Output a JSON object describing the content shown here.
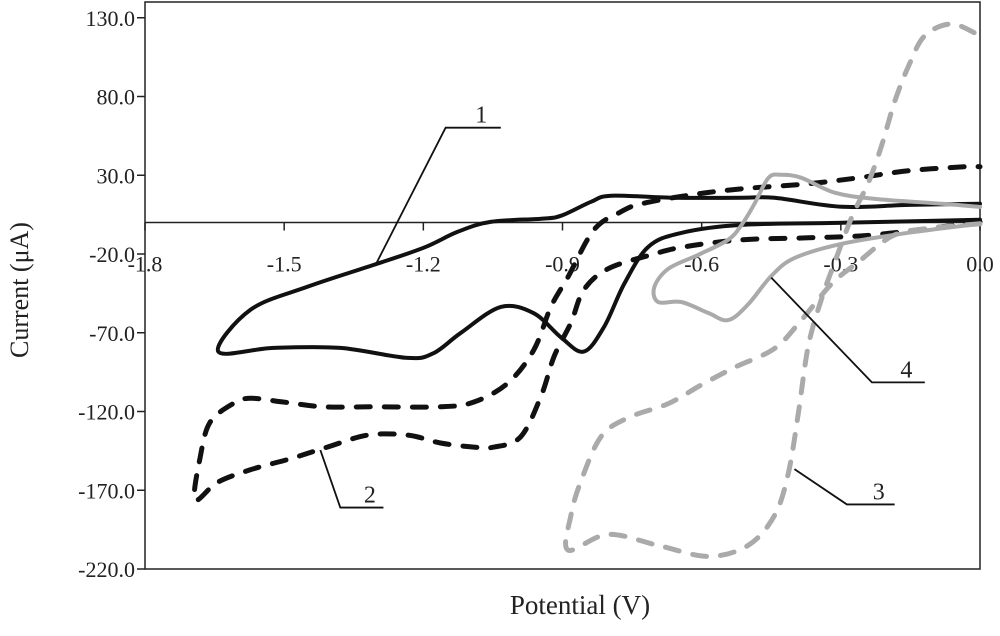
{
  "chart_data": {
    "type": "line",
    "title": "",
    "xlabel": "Potential (V)",
    "ylabel": "Current (μA)",
    "xlim": [
      -1.8,
      0.0
    ],
    "ylim": [
      -220,
      140
    ],
    "xticks": [
      -1.8,
      -1.5,
      -1.2,
      -0.9,
      -0.6,
      -0.3,
      0.0
    ],
    "xtick_labels": [
      "-1.8",
      "-1.5",
      "-1.2",
      "-0.9",
      "-0.6",
      "-0.3",
      "0.0"
    ],
    "yticks": [
      130,
      80,
      30,
      -20,
      -70,
      -120,
      -170,
      -220
    ],
    "ytick_labels": [
      "130.0",
      "80.0",
      "30.0",
      "-20.0",
      "-70.0",
      "-120.0",
      "-170.0",
      "-220.0"
    ],
    "grid": false,
    "series": [
      {
        "id": "1",
        "color": "#111111",
        "style": "solid",
        "points": [
          [
            0.0,
            1.7
          ],
          [
            -0.298,
            -0.2
          ],
          [
            -0.514,
            -1.5
          ],
          [
            -0.644,
            -6.6
          ],
          [
            -0.715,
            -15.5
          ],
          [
            -0.767,
            -39
          ],
          [
            -0.81,
            -66
          ],
          [
            -0.854,
            -82
          ],
          [
            -0.903,
            -73
          ],
          [
            -0.962,
            -57.6
          ],
          [
            -1.033,
            -53.6
          ],
          [
            -1.119,
            -70
          ],
          [
            -1.178,
            -83
          ],
          [
            -1.234,
            -86
          ],
          [
            -1.379,
            -79.6
          ],
          [
            -1.523,
            -79.6
          ],
          [
            -1.642,
            -82
          ],
          [
            -1.573,
            -55.5
          ],
          [
            -1.45,
            -40.8
          ],
          [
            -1.307,
            -26.9
          ],
          [
            -1.199,
            -16
          ],
          [
            -1.126,
            -5.9
          ],
          [
            -1.055,
            0.4
          ],
          [
            -0.946,
            2.4
          ],
          [
            -0.903,
            4.3
          ],
          [
            -0.838,
            13.2
          ],
          [
            -0.795,
            17
          ],
          [
            -0.659,
            15.7
          ],
          [
            -0.514,
            15.7
          ],
          [
            -0.443,
            15.7
          ],
          [
            -0.298,
            10
          ],
          [
            -0.153,
            11.2
          ],
          [
            0.0,
            11.9
          ]
        ]
      },
      {
        "id": "2",
        "color": "#111111",
        "style": "dashed",
        "points": [
          [
            0.0,
            0.4
          ],
          [
            -0.227,
            -7.8
          ],
          [
            -0.37,
            -9.7
          ],
          [
            -0.514,
            -11
          ],
          [
            -0.637,
            -15.4
          ],
          [
            -0.709,
            -20.5
          ],
          [
            -0.802,
            -29.4
          ],
          [
            -0.854,
            -42.8
          ],
          [
            -0.882,
            -63.7
          ],
          [
            -0.918,
            -85
          ],
          [
            -0.946,
            -110
          ],
          [
            -0.99,
            -136
          ],
          [
            -1.048,
            -142.6
          ],
          [
            -1.091,
            -142.6
          ],
          [
            -1.163,
            -140
          ],
          [
            -1.234,
            -135
          ],
          [
            -1.32,
            -135
          ],
          [
            -1.407,
            -142.6
          ],
          [
            -1.487,
            -150
          ],
          [
            -1.573,
            -157
          ],
          [
            -1.644,
            -165
          ],
          [
            -1.692,
            -176
          ],
          [
            -1.681,
            -149
          ],
          [
            -1.66,
            -127
          ],
          [
            -1.61,
            -115
          ],
          [
            -1.573,
            -111.6
          ],
          [
            -1.502,
            -114
          ],
          [
            -1.415,
            -117
          ],
          [
            -1.307,
            -117
          ],
          [
            -1.163,
            -117
          ],
          [
            -1.091,
            -114
          ],
          [
            -1.018,
            -102
          ],
          [
            -0.962,
            -81
          ],
          [
            -0.925,
            -53.6
          ],
          [
            -0.888,
            -34.5
          ],
          [
            -0.832,
            -4.6
          ],
          [
            -0.774,
            6.8
          ],
          [
            -0.73,
            11.9
          ],
          [
            -0.622,
            17.6
          ],
          [
            -0.514,
            21.4
          ],
          [
            -0.37,
            24.6
          ],
          [
            -0.262,
            28.4
          ],
          [
            -0.153,
            32.9
          ],
          [
            -0.032,
            35.4
          ],
          [
            0.0,
            35.4
          ]
        ]
      },
      {
        "id": "3",
        "color": "#aaaaaa",
        "style": "dashed",
        "points": [
          [
            0.0,
            -0.8
          ],
          [
            -0.119,
            -4
          ],
          [
            -0.19,
            -8.7
          ],
          [
            -0.262,
            -25
          ],
          [
            -0.32,
            -39
          ],
          [
            -0.385,
            -62
          ],
          [
            -0.443,
            -80
          ],
          [
            -0.529,
            -92
          ],
          [
            -0.6,
            -103
          ],
          [
            -0.672,
            -115
          ],
          [
            -0.759,
            -124
          ],
          [
            -0.817,
            -136
          ],
          [
            -0.86,
            -164
          ],
          [
            -0.882,
            -186
          ],
          [
            -0.888,
            -208
          ],
          [
            -0.802,
            -198
          ],
          [
            -0.694,
            -205
          ],
          [
            -0.586,
            -212
          ],
          [
            -0.5,
            -205
          ],
          [
            -0.443,
            -186
          ],
          [
            -0.413,
            -159
          ],
          [
            -0.391,
            -120
          ],
          [
            -0.37,
            -78
          ],
          [
            -0.341,
            -48
          ],
          [
            -0.313,
            -25
          ],
          [
            -0.277,
            3
          ],
          [
            -0.24,
            25.8
          ],
          [
            -0.212,
            49
          ],
          [
            -0.184,
            76.7
          ],
          [
            -0.153,
            100
          ],
          [
            -0.119,
            118.6
          ],
          [
            -0.061,
            126
          ],
          [
            0.0,
            118.6
          ]
        ]
      },
      {
        "id": "4",
        "color": "#aaaaaa",
        "style": "solid",
        "points": [
          [
            0.0,
            9.9
          ],
          [
            -0.082,
            11.9
          ],
          [
            -0.227,
            15
          ],
          [
            -0.313,
            18.9
          ],
          [
            -0.385,
            28.4
          ],
          [
            -0.428,
            30.3
          ],
          [
            -0.456,
            28.4
          ],
          [
            -0.486,
            11.9
          ],
          [
            -0.514,
            -1.5
          ],
          [
            -0.543,
            -11
          ],
          [
            -0.607,
            -20.5
          ],
          [
            -0.672,
            -29.4
          ],
          [
            -0.702,
            -41
          ],
          [
            -0.694,
            -50.5
          ],
          [
            -0.644,
            -50.5
          ],
          [
            -0.586,
            -57.4
          ],
          [
            -0.543,
            -62
          ],
          [
            -0.5,
            -52
          ],
          [
            -0.45,
            -34
          ],
          [
            -0.4,
            -22.6
          ],
          [
            -0.298,
            -13.5
          ],
          [
            -0.153,
            -6.5
          ],
          [
            0.0,
            -0.8
          ]
        ]
      }
    ],
    "annotations": [
      {
        "text": "1",
        "from": [
          -1.303,
          -26.9
        ],
        "elbow": [
          -1.152,
          60.2
        ],
        "to": [
          -1.033,
          60.2
        ]
      },
      {
        "text": "2",
        "from": [
          -1.422,
          -144.5
        ],
        "elbow": [
          -1.379,
          -181
        ],
        "to": [
          -1.286,
          -181
        ]
      },
      {
        "text": "3",
        "from": [
          -0.4,
          -156.6
        ],
        "elbow": [
          -0.287,
          -179
        ],
        "to": [
          -0.184,
          -179
        ]
      },
      {
        "text": "4",
        "from": [
          -0.45,
          -35
        ],
        "elbow": [
          -0.233,
          -101.5
        ],
        "to": [
          -0.119,
          -101.5
        ]
      }
    ]
  }
}
